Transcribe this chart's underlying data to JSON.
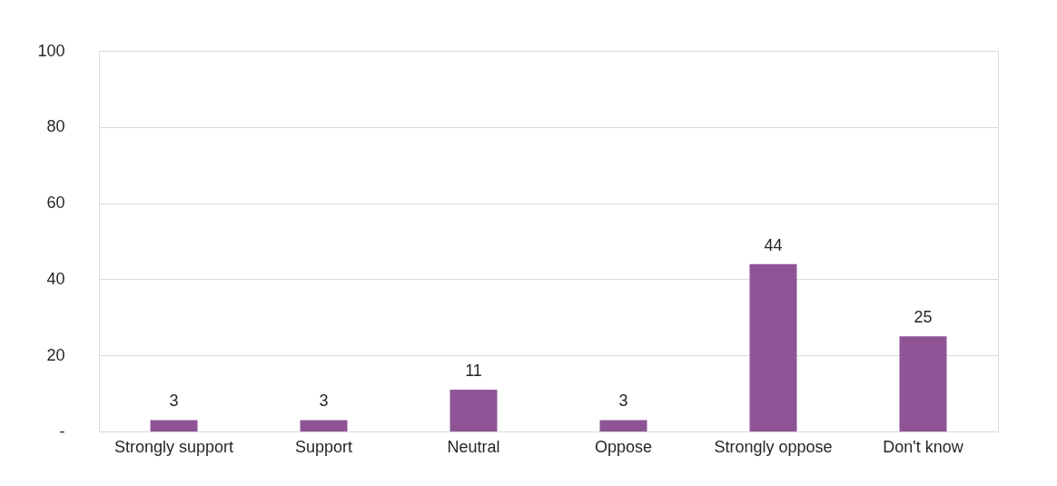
{
  "chart_data": {
    "type": "bar",
    "categories": [
      "Strongly support",
      "Support",
      "Neutral",
      "Oppose",
      "Strongly oppose",
      "Don't know"
    ],
    "values": [
      3,
      3,
      11,
      3,
      44,
      25
    ],
    "color": "#8e5496",
    "ylim": [
      0,
      100
    ],
    "yticks": [
      {
        "value": 0,
        "label": "-"
      },
      20,
      40,
      60,
      80,
      100
    ],
    "grid": "y",
    "data_labels": true
  }
}
